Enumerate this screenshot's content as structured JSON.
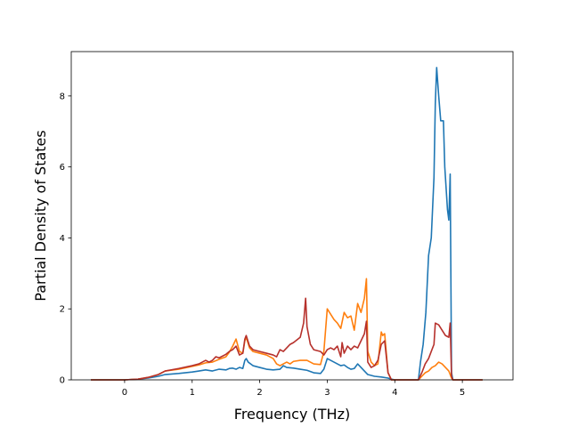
{
  "chart_data": {
    "type": "line",
    "title": "",
    "xlabel": "Frequency (THz)",
    "ylabel": "Partial Density of States",
    "xlim": [
      -0.79,
      5.75
    ],
    "ylim": [
      0,
      9.25
    ],
    "xticks": [
      0,
      1,
      2,
      3,
      4,
      5
    ],
    "yticks": [
      0,
      2,
      4,
      6,
      8
    ],
    "grid": false,
    "legend": "none",
    "series": [
      {
        "color": "#1f77b4",
        "points": [
          [
            -0.5,
            0
          ],
          [
            0.0,
            0
          ],
          [
            0.2,
            0.02
          ],
          [
            0.35,
            0.05
          ],
          [
            0.5,
            0.1
          ],
          [
            0.6,
            0.15
          ],
          [
            0.8,
            0.18
          ],
          [
            1.0,
            0.22
          ],
          [
            1.1,
            0.25
          ],
          [
            1.2,
            0.28
          ],
          [
            1.3,
            0.25
          ],
          [
            1.4,
            0.3
          ],
          [
            1.5,
            0.28
          ],
          [
            1.55,
            0.32
          ],
          [
            1.6,
            0.33
          ],
          [
            1.65,
            0.3
          ],
          [
            1.7,
            0.35
          ],
          [
            1.75,
            0.32
          ],
          [
            1.78,
            0.55
          ],
          [
            1.8,
            0.6
          ],
          [
            1.83,
            0.5
          ],
          [
            1.9,
            0.4
          ],
          [
            2.0,
            0.35
          ],
          [
            2.1,
            0.3
          ],
          [
            2.2,
            0.28
          ],
          [
            2.3,
            0.3
          ],
          [
            2.35,
            0.4
          ],
          [
            2.4,
            0.35
          ],
          [
            2.5,
            0.33
          ],
          [
            2.6,
            0.3
          ],
          [
            2.7,
            0.27
          ],
          [
            2.8,
            0.2
          ],
          [
            2.9,
            0.18
          ],
          [
            2.95,
            0.3
          ],
          [
            3.0,
            0.6
          ],
          [
            3.05,
            0.55
          ],
          [
            3.1,
            0.5
          ],
          [
            3.15,
            0.45
          ],
          [
            3.2,
            0.4
          ],
          [
            3.25,
            0.42
          ],
          [
            3.3,
            0.35
          ],
          [
            3.35,
            0.3
          ],
          [
            3.4,
            0.32
          ],
          [
            3.45,
            0.45
          ],
          [
            3.5,
            0.35
          ],
          [
            3.55,
            0.25
          ],
          [
            3.6,
            0.15
          ],
          [
            3.7,
            0.1
          ],
          [
            3.8,
            0.08
          ],
          [
            3.9,
            0.05
          ],
          [
            3.95,
            0.02
          ],
          [
            4.0,
            0
          ],
          [
            4.35,
            0
          ],
          [
            4.38,
            0.5
          ],
          [
            4.42,
            1.0
          ],
          [
            4.46,
            1.9
          ],
          [
            4.5,
            3.5
          ],
          [
            4.54,
            4.0
          ],
          [
            4.58,
            5.7
          ],
          [
            4.6,
            7.8
          ],
          [
            4.62,
            8.8
          ],
          [
            4.65,
            8.0
          ],
          [
            4.68,
            7.3
          ],
          [
            4.72,
            7.3
          ],
          [
            4.74,
            6.0
          ],
          [
            4.78,
            4.8
          ],
          [
            4.8,
            4.5
          ],
          [
            4.82,
            5.8
          ],
          [
            4.84,
            0.2
          ],
          [
            4.86,
            0
          ],
          [
            5.3,
            0
          ]
        ]
      },
      {
        "color": "#ff7f0e",
        "points": [
          [
            -0.5,
            0
          ],
          [
            0.0,
            0
          ],
          [
            0.2,
            0.02
          ],
          [
            0.35,
            0.07
          ],
          [
            0.5,
            0.15
          ],
          [
            0.6,
            0.25
          ],
          [
            0.8,
            0.3
          ],
          [
            1.0,
            0.38
          ],
          [
            1.1,
            0.42
          ],
          [
            1.2,
            0.48
          ],
          [
            1.3,
            0.5
          ],
          [
            1.4,
            0.58
          ],
          [
            1.5,
            0.65
          ],
          [
            1.55,
            0.78
          ],
          [
            1.6,
            0.95
          ],
          [
            1.65,
            1.15
          ],
          [
            1.7,
            0.8
          ],
          [
            1.75,
            0.75
          ],
          [
            1.78,
            1.1
          ],
          [
            1.8,
            1.2
          ],
          [
            1.85,
            0.9
          ],
          [
            1.9,
            0.8
          ],
          [
            2.0,
            0.75
          ],
          [
            2.1,
            0.7
          ],
          [
            2.2,
            0.6
          ],
          [
            2.25,
            0.45
          ],
          [
            2.3,
            0.4
          ],
          [
            2.35,
            0.45
          ],
          [
            2.4,
            0.5
          ],
          [
            2.45,
            0.45
          ],
          [
            2.5,
            0.52
          ],
          [
            2.6,
            0.55
          ],
          [
            2.7,
            0.55
          ],
          [
            2.75,
            0.5
          ],
          [
            2.8,
            0.45
          ],
          [
            2.9,
            0.43
          ],
          [
            2.95,
            0.8
          ],
          [
            3.0,
            2.0
          ],
          [
            3.05,
            1.85
          ],
          [
            3.1,
            1.7
          ],
          [
            3.15,
            1.6
          ],
          [
            3.2,
            1.45
          ],
          [
            3.25,
            1.9
          ],
          [
            3.3,
            1.75
          ],
          [
            3.35,
            1.8
          ],
          [
            3.4,
            1.4
          ],
          [
            3.45,
            2.15
          ],
          [
            3.5,
            1.9
          ],
          [
            3.55,
            2.3
          ],
          [
            3.58,
            2.85
          ],
          [
            3.6,
            0.8
          ],
          [
            3.65,
            0.5
          ],
          [
            3.7,
            0.4
          ],
          [
            3.75,
            0.45
          ],
          [
            3.8,
            1.35
          ],
          [
            3.82,
            1.25
          ],
          [
            3.85,
            1.3
          ],
          [
            3.9,
            0.2
          ],
          [
            3.95,
            0
          ],
          [
            4.35,
            0
          ],
          [
            4.4,
            0.1
          ],
          [
            4.45,
            0.2
          ],
          [
            4.5,
            0.25
          ],
          [
            4.55,
            0.35
          ],
          [
            4.6,
            0.4
          ],
          [
            4.65,
            0.5
          ],
          [
            4.7,
            0.45
          ],
          [
            4.75,
            0.35
          ],
          [
            4.8,
            0.25
          ],
          [
            4.84,
            0.05
          ],
          [
            4.86,
            0
          ],
          [
            5.3,
            0
          ]
        ]
      },
      {
        "color": "#b6312c",
        "points": [
          [
            -0.5,
            0
          ],
          [
            0.0,
            0
          ],
          [
            0.2,
            0.02
          ],
          [
            0.35,
            0.07
          ],
          [
            0.5,
            0.15
          ],
          [
            0.6,
            0.25
          ],
          [
            0.8,
            0.32
          ],
          [
            1.0,
            0.4
          ],
          [
            1.1,
            0.45
          ],
          [
            1.2,
            0.55
          ],
          [
            1.25,
            0.5
          ],
          [
            1.3,
            0.55
          ],
          [
            1.35,
            0.65
          ],
          [
            1.4,
            0.62
          ],
          [
            1.5,
            0.72
          ],
          [
            1.55,
            0.8
          ],
          [
            1.6,
            0.85
          ],
          [
            1.65,
            0.95
          ],
          [
            1.7,
            0.7
          ],
          [
            1.75,
            0.75
          ],
          [
            1.78,
            1.15
          ],
          [
            1.8,
            1.25
          ],
          [
            1.85,
            0.95
          ],
          [
            1.9,
            0.85
          ],
          [
            2.0,
            0.8
          ],
          [
            2.1,
            0.75
          ],
          [
            2.2,
            0.7
          ],
          [
            2.25,
            0.65
          ],
          [
            2.3,
            0.85
          ],
          [
            2.35,
            0.8
          ],
          [
            2.4,
            0.9
          ],
          [
            2.45,
            1.0
          ],
          [
            2.5,
            1.05
          ],
          [
            2.6,
            1.2
          ],
          [
            2.65,
            1.6
          ],
          [
            2.68,
            2.3
          ],
          [
            2.7,
            1.5
          ],
          [
            2.75,
            1.0
          ],
          [
            2.8,
            0.85
          ],
          [
            2.9,
            0.8
          ],
          [
            2.95,
            0.7
          ],
          [
            3.0,
            0.85
          ],
          [
            3.05,
            0.9
          ],
          [
            3.1,
            0.85
          ],
          [
            3.15,
            0.95
          ],
          [
            3.2,
            0.65
          ],
          [
            3.22,
            1.05
          ],
          [
            3.25,
            0.75
          ],
          [
            3.3,
            0.95
          ],
          [
            3.35,
            0.85
          ],
          [
            3.4,
            0.95
          ],
          [
            3.45,
            0.9
          ],
          [
            3.5,
            1.1
          ],
          [
            3.55,
            1.3
          ],
          [
            3.58,
            1.65
          ],
          [
            3.6,
            0.5
          ],
          [
            3.65,
            0.35
          ],
          [
            3.7,
            0.4
          ],
          [
            3.75,
            0.55
          ],
          [
            3.8,
            1.0
          ],
          [
            3.85,
            1.1
          ],
          [
            3.9,
            0.2
          ],
          [
            3.95,
            0
          ],
          [
            4.35,
            0
          ],
          [
            4.4,
            0.2
          ],
          [
            4.45,
            0.45
          ],
          [
            4.5,
            0.6
          ],
          [
            4.55,
            0.85
          ],
          [
            4.58,
            1.0
          ],
          [
            4.6,
            1.6
          ],
          [
            4.65,
            1.55
          ],
          [
            4.7,
            1.4
          ],
          [
            4.75,
            1.25
          ],
          [
            4.8,
            1.2
          ],
          [
            4.82,
            1.6
          ],
          [
            4.84,
            0.1
          ],
          [
            4.86,
            0
          ],
          [
            5.3,
            0
          ]
        ]
      }
    ]
  }
}
